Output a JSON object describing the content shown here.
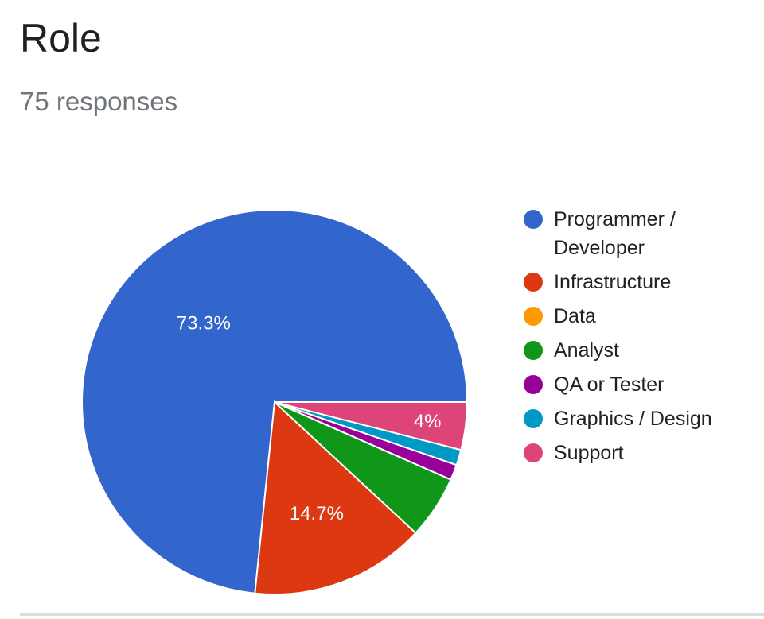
{
  "header": {
    "title": "Role",
    "subtitle": "75 responses"
  },
  "chart_data": {
    "type": "pie",
    "title": "Role",
    "subtitle": "75 responses",
    "legend_position": "right",
    "slices": [
      {
        "label": "Programmer / Developer",
        "value": 73.3,
        "display": "73.3%",
        "color": "#3366cc"
      },
      {
        "label": "Infrastructure",
        "value": 14.7,
        "display": "14.7%",
        "color": "#dc3912"
      },
      {
        "label": "Data",
        "value": 0,
        "display": "",
        "color": "#ff9900"
      },
      {
        "label": "Analyst",
        "value": 5.3,
        "display": "",
        "color": "#109618"
      },
      {
        "label": "QA or Tester",
        "value": 1.3,
        "display": "",
        "color": "#990099"
      },
      {
        "label": "Graphics / Design",
        "value": 1.3,
        "display": "",
        "color": "#0099c6"
      },
      {
        "label": "Support",
        "value": 4,
        "display": "4%",
        "color": "#dd4477"
      }
    ]
  }
}
